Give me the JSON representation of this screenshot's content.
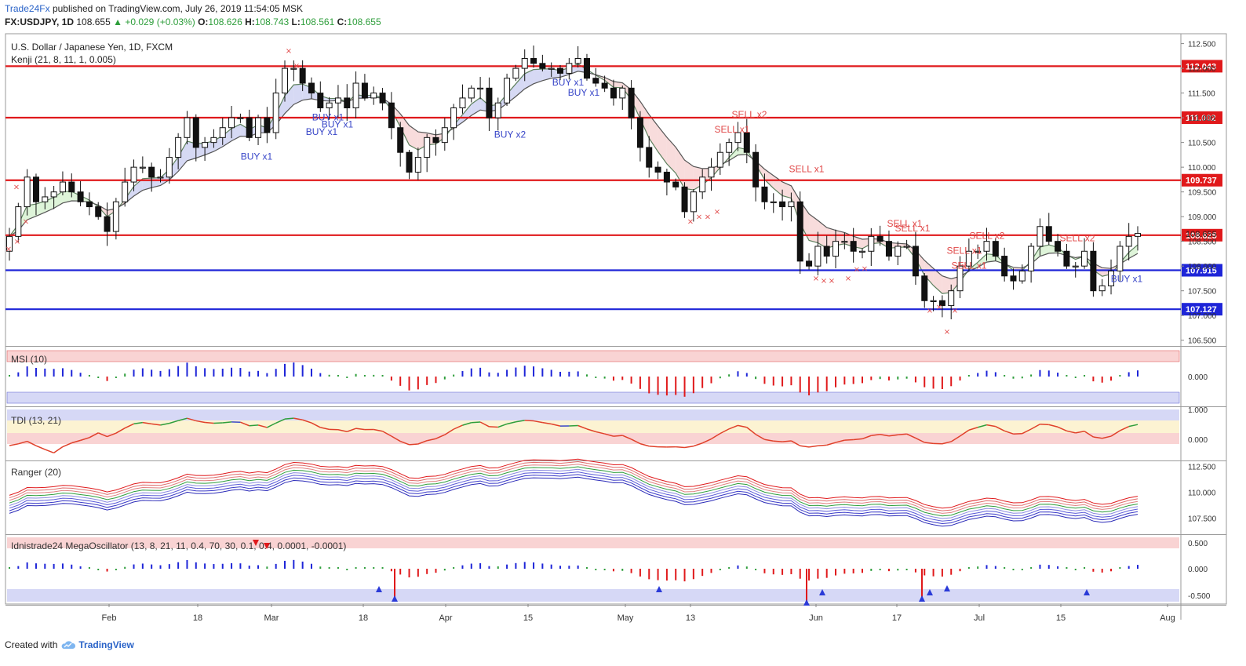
{
  "header": {
    "publisher": "Trade24Fx",
    "published_text": "published on TradingView.com, July 26, 2019 11:54:05 MSK",
    "symbol": "FX:USDJPY, 1D",
    "last": "108.655",
    "change": "▲ +0.029 (+0.03%)",
    "o_label": "O:",
    "o": "108.626",
    "h_label": "H:",
    "h": "108.743",
    "l_label": "L:",
    "l": "108.561",
    "c_label": "C:",
    "c": "108.655"
  },
  "footer": {
    "created_with": "Created with",
    "brand": "TradingView"
  },
  "colors": {
    "red_line": "#e0191b",
    "blue_line": "#1e25d8",
    "bull": "#ffffff",
    "bear": "#111111",
    "kenji_upper": "#5d7f5d",
    "kenji_lower": "#4f5a3f",
    "cloud_green": "#d8f2d2",
    "cloud_blue": "#cfd2f2",
    "cloud_red": "#f7d6d6",
    "signal_buy": "#3846c8",
    "signal_sell": "#e04848",
    "price_label": "#e0191b",
    "blue_label": "#1e25d8"
  },
  "chart_data": [
    {
      "type": "candlestick",
      "title": "U.S. Dollar / Japanese Yen, 1D, FXCM",
      "indicator": "Kenji (21, 8, 11, 1, 0.005)",
      "ylim": [
        106.4,
        112.7
      ],
      "y_ticks": [
        "112.500",
        "112.000",
        "111.500",
        "111.000",
        "110.500",
        "110.000",
        "109.500",
        "109.000",
        "108.500",
        "108.000",
        "107.500",
        "107.000",
        "106.500"
      ],
      "x_labels": [
        "Feb",
        "18",
        "Mar",
        "18",
        "Apr",
        "15",
        "May",
        "13",
        "Jun",
        "17",
        "Jul",
        "15",
        "Aug"
      ],
      "hlines": [
        {
          "value": 112.043,
          "label": "112.043",
          "color": "red"
        },
        {
          "value": 111.002,
          "label": "111.002",
          "color": "red"
        },
        {
          "value": 109.737,
          "label": "109.737",
          "color": "red"
        },
        {
          "value": 108.625,
          "label": "108.625",
          "color": "red"
        },
        {
          "value": 107.915,
          "label": "107.915",
          "color": "blue"
        },
        {
          "value": 107.127,
          "label": "107.127",
          "color": "blue"
        }
      ],
      "last_price": "108.655",
      "closes": [
        108.6,
        109.2,
        109.8,
        109.3,
        109.4,
        109.5,
        109.7,
        109.5,
        109.3,
        109.2,
        109.0,
        108.7,
        109.3,
        109.7,
        110.0,
        110.0,
        109.8,
        109.8,
        110.2,
        110.6,
        111.0,
        110.4,
        110.5,
        110.6,
        110.8,
        111.0,
        111.0,
        110.6,
        111.0,
        110.7,
        111.5,
        112.0,
        112.0,
        111.7,
        111.5,
        111.2,
        111.3,
        111.4,
        111.2,
        111.7,
        111.4,
        111.5,
        111.3,
        110.8,
        110.3,
        109.9,
        110.2,
        110.6,
        110.5,
        110.8,
        111.2,
        111.4,
        111.6,
        111.6,
        111.0,
        111.3,
        111.8,
        112.0,
        112.2,
        112.1,
        112.0,
        112.0,
        111.9,
        112.1,
        112.2,
        111.8,
        111.7,
        111.6,
        111.4,
        111.6,
        111.0,
        110.4,
        110.0,
        109.9,
        109.7,
        109.6,
        109.1,
        109.5,
        109.8,
        110.0,
        110.3,
        110.5,
        110.7,
        110.3,
        109.6,
        109.3,
        109.3,
        109.2,
        109.3,
        108.1,
        108.0,
        108.4,
        108.2,
        108.5,
        108.5,
        108.3,
        108.3,
        108.6,
        108.5,
        108.2,
        108.4,
        108.4,
        107.8,
        107.3,
        107.3,
        107.2,
        107.5,
        108.0,
        108.3,
        108.3,
        108.5,
        108.2,
        107.8,
        107.7,
        107.9,
        108.4,
        108.8,
        108.5,
        108.3,
        108.0,
        108.0,
        108.3,
        107.5,
        107.6,
        107.9,
        108.4,
        108.6,
        108.66
      ],
      "signals": [
        {
          "text": "BUY x1"
        },
        {
          "text": "BUY x1"
        },
        {
          "text": "BUY x1"
        },
        {
          "text": "BUY x1"
        },
        {
          "text": "BUY x2"
        },
        {
          "text": "BUY x1"
        },
        {
          "text": "BUY x1"
        },
        {
          "text": "SELL x2"
        },
        {
          "text": "SELL x1"
        },
        {
          "text": "SELL x1"
        },
        {
          "text": "SELL x1"
        },
        {
          "text": "SELL x1"
        },
        {
          "text": "SELL x1"
        },
        {
          "text": "SELL x2"
        },
        {
          "text": "SELL x1"
        },
        {
          "text": "SELL x2"
        },
        {
          "text": "BUY x1"
        }
      ]
    },
    {
      "type": "histogram",
      "title": "MSI (10)",
      "y_ticks": [
        "0.000"
      ],
      "bands": [
        "overbought",
        "oversold"
      ]
    },
    {
      "type": "line",
      "title": "TDI (13, 21)",
      "y_ticks": [
        "1.000",
        "0.000"
      ]
    },
    {
      "type": "line",
      "title": "Ranger (20)",
      "y_ticks": [
        "112.500",
        "110.000",
        "107.500"
      ]
    },
    {
      "type": "histogram",
      "title": "Idnistrade24 MegaOscillator (13, 8, 21, 11, 0.4, 70, 30, 0.1, 0.4, 0.0001, -0.0001)",
      "y_ticks": [
        "0.500",
        "0.000",
        "-0.500"
      ]
    }
  ]
}
